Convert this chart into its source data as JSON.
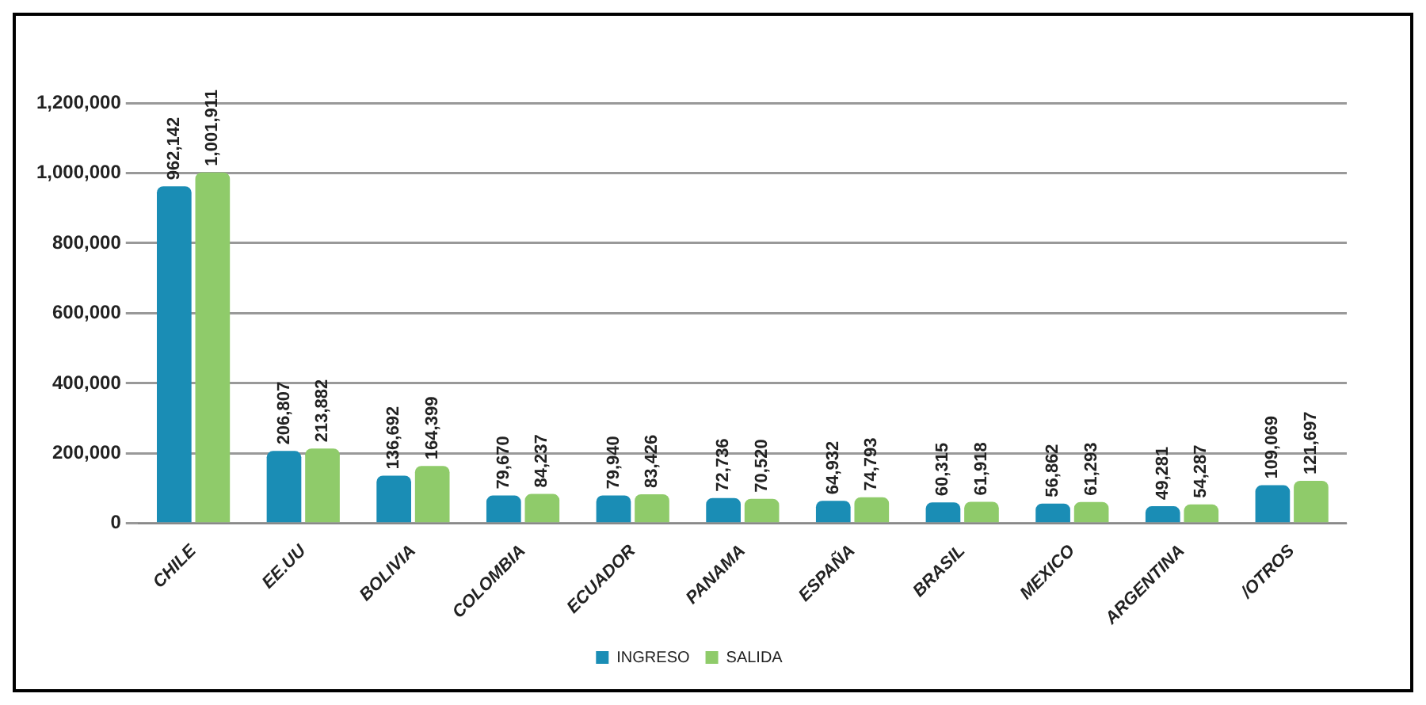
{
  "chart_data": {
    "type": "bar",
    "categories": [
      "CHILE",
      "EE.UU",
      "BOLIVIA",
      "COLOMBIA",
      "ECUADOR",
      "PANAMA",
      "ESPAÑA",
      "BRASIL",
      "MEXICO",
      "ARGENTINA",
      "/OTROS"
    ],
    "series": [
      {
        "name": "INGRESO",
        "color": "#1a8db5",
        "values": [
          962142,
          206807,
          136692,
          79670,
          79940,
          72736,
          64932,
          60315,
          56862,
          49281,
          109069
        ],
        "value_labels": [
          "962,142",
          "206,807",
          "136,692",
          "79,670",
          "79,940",
          "72,736",
          "64,932",
          "60,315",
          "56,862",
          "49,281",
          "109,069"
        ]
      },
      {
        "name": "SALIDA",
        "color": "#8fcb6a",
        "values": [
          1001911,
          213882,
          164399,
          84237,
          83426,
          70520,
          74793,
          61918,
          61293,
          54287,
          121697
        ],
        "value_labels": [
          "1,001,911",
          "213,882",
          "164,399",
          "84,237",
          "83,426",
          "70,520",
          "74,793",
          "61,918",
          "61,293",
          "54,287",
          "121,697"
        ]
      }
    ],
    "ylim": [
      0,
      1200000
    ],
    "yticks": [
      {
        "value": 0,
        "label": "0"
      },
      {
        "value": 200000,
        "label": "200,000"
      },
      {
        "value": 400000,
        "label": "400,000"
      },
      {
        "value": 600000,
        "label": "600,000"
      },
      {
        "value": 800000,
        "label": "800,000"
      },
      {
        "value": 1000000,
        "label": "1,000,000"
      },
      {
        "value": 1200000,
        "label": "1,200,000"
      }
    ],
    "grid": "y",
    "legend": "bottom"
  }
}
